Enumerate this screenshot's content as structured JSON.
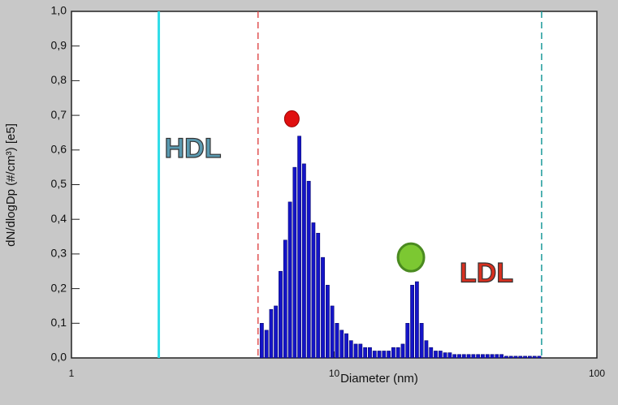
{
  "chart_data": {
    "type": "histogram",
    "xlabel": "Diameter (nm)",
    "ylabel": "dN/dlogDp (#/cm³) [e5]",
    "xscale": "log",
    "xlim": [
      1,
      100
    ],
    "xticks": [
      1,
      10,
      100
    ],
    "ylim": [
      0,
      1
    ],
    "yticks": [
      {
        "value": 0,
        "label": "0,0"
      },
      {
        "value": 0.1,
        "label": "0,1"
      },
      {
        "value": 0.2,
        "label": "0,2"
      },
      {
        "value": 0.3,
        "label": "0,3"
      },
      {
        "value": 0.4,
        "label": "0,4"
      },
      {
        "value": 0.5,
        "label": "0,5"
      },
      {
        "value": 0.6,
        "label": "0,6"
      },
      {
        "value": 0.7,
        "label": "0,7"
      },
      {
        "value": 0.8,
        "label": "0,8"
      },
      {
        "value": 0.9,
        "label": "0,9"
      },
      {
        "value": 1,
        "label": "1,0"
      }
    ],
    "color": "#1414c8",
    "bins": [
      5.2,
      5.42,
      5.65,
      5.88,
      6.13,
      6.39,
      6.66,
      6.94,
      7.23,
      7.53,
      7.85,
      8.18,
      8.52,
      8.88,
      9.26,
      9.65,
      10.05,
      10.48,
      10.92,
      11.38,
      11.85,
      12.35,
      12.87,
      13.41,
      13.98,
      14.57,
      15.18,
      15.82,
      16.48,
      17.18,
      17.9,
      18.65,
      19.44,
      20.26,
      21.11,
      22.0,
      22.92,
      23.89,
      24.89,
      25.94,
      27.03,
      28.17,
      29.36,
      30.59,
      31.88,
      33.22,
      34.62,
      36.08,
      37.59,
      39.18,
      40.83,
      42.54,
      44.33,
      46.2,
      48.15,
      50.17,
      52.29,
      54.49,
      56.78,
      59.17,
      61.66
    ],
    "values": [
      0.1,
      0.08,
      0.14,
      0.15,
      0.25,
      0.34,
      0.45,
      0.55,
      0.64,
      0.56,
      0.51,
      0.39,
      0.36,
      0.29,
      0.21,
      0.15,
      0.1,
      0.08,
      0.07,
      0.05,
      0.04,
      0.04,
      0.03,
      0.03,
      0.02,
      0.02,
      0.02,
      0.02,
      0.03,
      0.03,
      0.04,
      0.1,
      0.21,
      0.22,
      0.1,
      0.05,
      0.03,
      0.02,
      0.02,
      0.015,
      0.015,
      0.01,
      0.01,
      0.01,
      0.01,
      0.01,
      0.01,
      0.01,
      0.01,
      0.01,
      0.01,
      0.01,
      0.005,
      0.005,
      0.005,
      0.005,
      0.005,
      0.005,
      0.005,
      0.005
    ],
    "vlines": [
      {
        "value": 2.15,
        "color": "#30dde8",
        "dashed": false
      },
      {
        "value": 5.13,
        "color": "#e05050",
        "dashed": true
      },
      {
        "value": 61.6,
        "color": "#1a9a9a",
        "dashed": true
      }
    ],
    "markers": [
      {
        "x": 6.9,
        "y": 0.69,
        "color": "#e01010"
      },
      {
        "x": 19.6,
        "y": 0.29,
        "color": "#7cc832"
      }
    ],
    "annotations": [
      {
        "text": "HDL",
        "x": 2.9,
        "y": 0.6,
        "color": "#5a9ab0"
      },
      {
        "text": "LDL",
        "x": 38,
        "y": 0.24,
        "color": "#d83020"
      }
    ]
  }
}
